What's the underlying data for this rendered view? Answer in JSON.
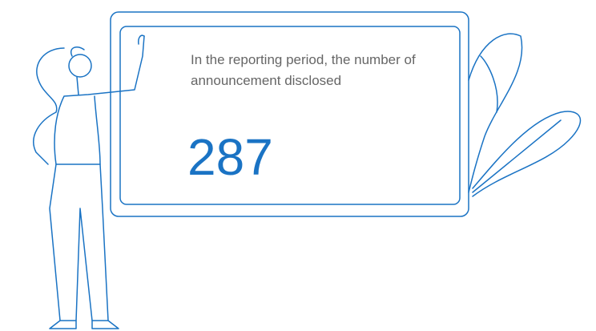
{
  "label": "In the reporting period, the number of announcement disclosed",
  "value": "287"
}
